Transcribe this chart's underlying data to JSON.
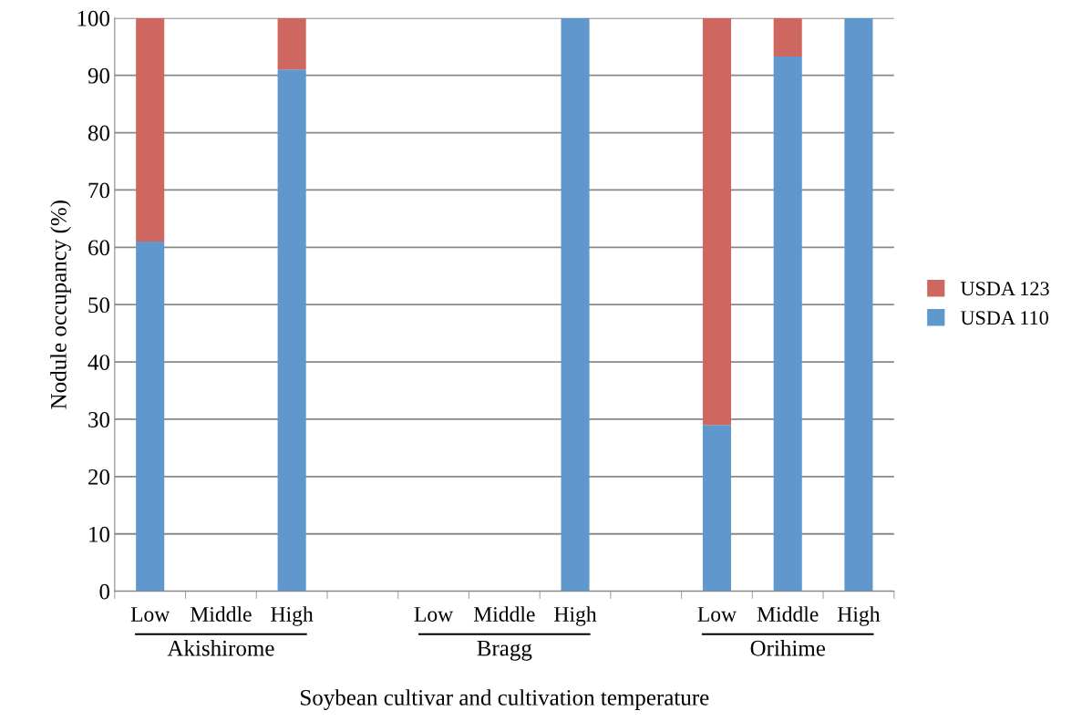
{
  "chart_data": {
    "type": "bar",
    "stacked": true,
    "ylabel": "Nodule occupancy (%)",
    "xlabel": "Soybean cultivar and cultivation temperature",
    "categories": [
      "Low",
      "Middle",
      "High",
      null,
      "Low",
      "Middle",
      "High",
      null,
      "Low",
      "Middle",
      "High"
    ],
    "series": [
      {
        "name": "USDA 110",
        "color": "#6097cc",
        "values": [
          61,
          null,
          91,
          null,
          null,
          null,
          100,
          null,
          29,
          93.3,
          100
        ]
      },
      {
        "name": "USDA 123",
        "color": "#cd6760",
        "values": [
          39,
          null,
          9,
          null,
          null,
          null,
          null,
          null,
          71,
          6.7,
          null
        ]
      }
    ],
    "annotations": [
      "Akishirome",
      "Bragg",
      "Orihime"
    ],
    "ylim": [
      0,
      100
    ],
    "yticks": [
      0,
      10,
      20,
      30,
      40,
      50,
      60,
      70,
      80,
      90,
      100
    ],
    "grid": "y",
    "legend": "right"
  }
}
